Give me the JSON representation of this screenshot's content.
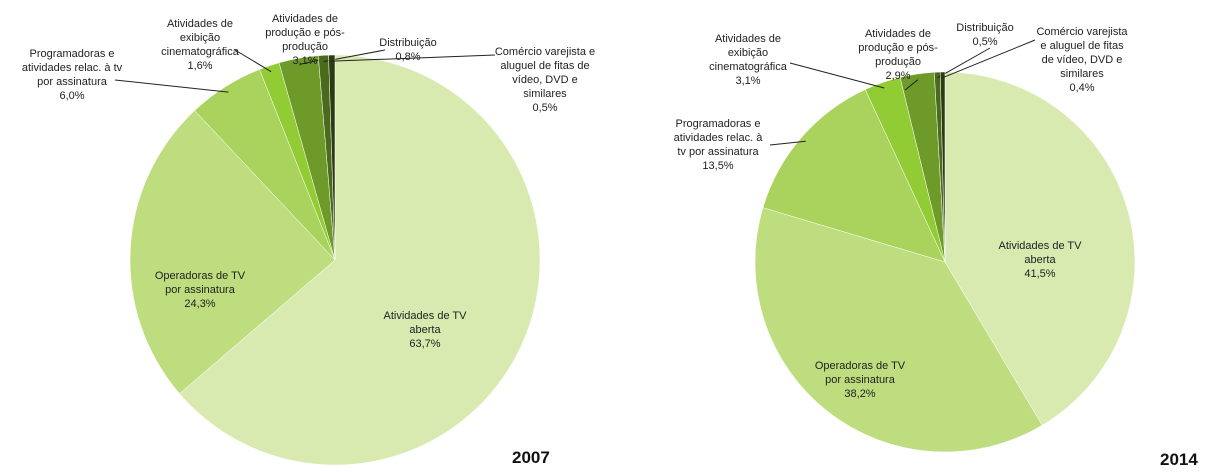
{
  "chart_data": [
    {
      "type": "pie",
      "title": "2007",
      "categories": [
        "Atividades de TV\naberta",
        "Operadoras de TV\npor assinatura",
        "Programadoras e\natividades relac. à tv\npor assinatura",
        "Atividades de\nexibição\ncinematográfica",
        "Atividades de\nprodução e pós-\nprodução",
        "Distribuição",
        "Comércio varejista e\naluguel de fitas de\nvídeo, DVD e\nsimilares"
      ],
      "values": [
        63.7,
        24.3,
        6.0,
        1.6,
        3.1,
        0.8,
        0.5
      ],
      "value_labels": [
        "63,7%",
        "24,3%",
        "6,0%",
        "1,6%",
        "3,1%",
        "0,8%",
        "0,5%"
      ],
      "colors": [
        "#d9eab0",
        "#bedd7f",
        "#a9d35c",
        "#92cc35",
        "#6e9a2a",
        "#4a6b1c",
        "#2b3d10"
      ]
    },
    {
      "type": "pie",
      "title": "2014",
      "categories": [
        "Atividades de TV\naberta",
        "Operadoras de TV\npor assinatura",
        "Programadoras e\natividades relac. à\ntv por assinatura",
        "Atividades de\nexibição\ncinematográfica",
        "Atividades de\nprodução e pós-\nprodução",
        "Distribuição",
        "Comércio varejista\ne aluguel de fitas\nde vídeo, DVD e\nsimilares"
      ],
      "values": [
        41.5,
        38.2,
        13.5,
        3.1,
        2.9,
        0.5,
        0.4
      ],
      "value_labels": [
        "41,5%",
        "38,2%",
        "13,5%",
        "3,1%",
        "2,9%",
        "0,5%",
        "0,4%"
      ],
      "colors": [
        "#d9eab0",
        "#bedd7f",
        "#a9d35c",
        "#92cc35",
        "#6e9a2a",
        "#4a6b1c",
        "#2b3d10"
      ]
    }
  ]
}
